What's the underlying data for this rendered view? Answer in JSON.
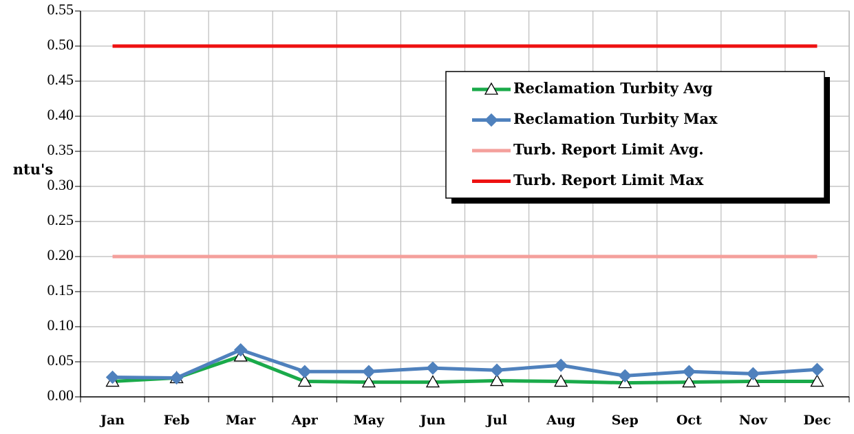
{
  "chart_data": {
    "type": "line",
    "y_label": "ntu's",
    "categories": [
      "Jan",
      "Feb",
      "Mar",
      "Apr",
      "May",
      "Jun",
      "Jul",
      "Aug",
      "Sep",
      "Oct",
      "Nov",
      "Dec"
    ],
    "series": [
      {
        "name": "Reclamation Turbity Avg",
        "color": "#1aaa4a",
        "marker": "triangle",
        "values": [
          0.022,
          0.027,
          0.058,
          0.022,
          0.021,
          0.021,
          0.023,
          0.022,
          0.02,
          0.021,
          0.022,
          0.022
        ]
      },
      {
        "name": "Reclamation Turbity Max",
        "color": "#4f81bd",
        "marker": "diamond",
        "values": [
          0.028,
          0.027,
          0.067,
          0.036,
          0.036,
          0.041,
          0.038,
          0.045,
          0.03,
          0.036,
          0.033,
          0.039
        ]
      },
      {
        "name": "Turb. Report Limit Avg.",
        "color": "#f4a09c",
        "marker": "none",
        "values": [
          0.2,
          0.2,
          0.2,
          0.2,
          0.2,
          0.2,
          0.2,
          0.2,
          0.2,
          0.2,
          0.2,
          0.2
        ]
      },
      {
        "name": "Turb. Report Limit Max",
        "color": "#ee1111",
        "marker": "none",
        "values": [
          0.5,
          0.5,
          0.5,
          0.5,
          0.5,
          0.5,
          0.5,
          0.5,
          0.5,
          0.5,
          0.5,
          0.5
        ]
      }
    ],
    "ylim": [
      0,
      0.55
    ],
    "yticks": [
      {
        "value": 0,
        "label": "0.00"
      },
      {
        "value": 0.05,
        "label": "0.05"
      },
      {
        "value": 0.1,
        "label": "0.10"
      },
      {
        "value": 0.15,
        "label": "0.15"
      },
      {
        "value": 0.2,
        "label": "0.20"
      },
      {
        "value": 0.25,
        "label": "0.25"
      },
      {
        "value": 0.3,
        "label": "0.30"
      },
      {
        "value": 0.35,
        "label": "0.35"
      },
      {
        "value": 0.4,
        "label": "0.40"
      },
      {
        "value": 0.45,
        "label": "0.45"
      },
      {
        "value": 0.5,
        "label": "0.50"
      },
      {
        "value": 0.55,
        "label": "0.55"
      }
    ],
    "grid": true
  }
}
